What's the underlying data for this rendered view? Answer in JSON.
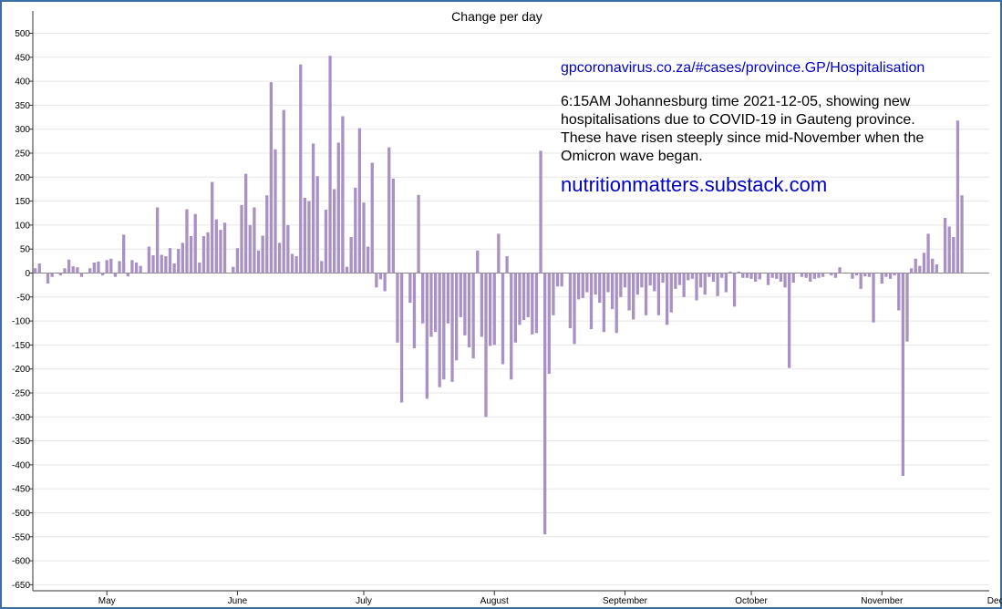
{
  "colors": {
    "bar": "#a991c4",
    "grid": "#e6e6e6",
    "axis": "#333333",
    "link": "#0000cc"
  },
  "annotation": {
    "url": "gpcoronavirus.co.za/#cases/province.GP/Hospitalisation",
    "description": "6:15AM Johannesburg time 2021-12-05, showing new hospitalisations due to COVID-19 in Gauteng province. These have risen steeply since mid-November when the Omicron wave began.",
    "substack": "nutritionmatters.substack.com"
  },
  "chart_data": {
    "type": "bar",
    "title": "Change per day",
    "xlabel": "",
    "ylabel": "",
    "ylim": [
      -660,
      520
    ],
    "grid": true,
    "yticks": [
      500,
      450,
      400,
      350,
      300,
      250,
      200,
      150,
      100,
      50,
      0,
      -50,
      -100,
      -150,
      -200,
      -250,
      -300,
      -350,
      -400,
      -450,
      -500,
      -550,
      -600,
      -650
    ],
    "xticks": [
      {
        "label": "May",
        "day": 17
      },
      {
        "label": "June",
        "day": 48
      },
      {
        "label": "July",
        "day": 78
      },
      {
        "label": "August",
        "day": 109
      },
      {
        "label": "September",
        "day": 140
      },
      {
        "label": "October",
        "day": 170
      },
      {
        "label": "November",
        "day": 201
      },
      {
        "label": "December",
        "day": 231
      }
    ],
    "start_date": "2021-04-14",
    "values": [
      10,
      20,
      0,
      -22,
      -8,
      0,
      -5,
      10,
      28,
      14,
      12,
      -8,
      0,
      10,
      22,
      24,
      -5,
      27,
      30,
      -8,
      25,
      80,
      -7,
      27,
      22,
      15,
      0,
      55,
      37,
      137,
      38,
      35,
      52,
      20,
      50,
      63,
      133,
      77,
      123,
      22,
      77,
      85,
      190,
      112,
      90,
      105,
      0,
      13,
      52,
      142,
      207,
      100,
      137,
      47,
      78,
      162,
      398,
      258,
      63,
      340,
      100,
      40,
      35,
      435,
      157,
      150,
      270,
      202,
      25,
      132,
      453,
      175,
      272,
      327,
      13,
      75,
      178,
      302,
      147,
      55,
      230,
      -30,
      -13,
      -38,
      262,
      197,
      -145,
      -270,
      0,
      -62,
      -157,
      163,
      -105,
      -262,
      -133,
      -123,
      -238,
      -222,
      -105,
      -227,
      -182,
      -92,
      -130,
      -155,
      -178,
      47,
      -133,
      -300,
      -152,
      -150,
      82,
      -190,
      35,
      -222,
      -145,
      -108,
      -98,
      -92,
      -128,
      -125,
      255,
      -545,
      -210,
      -88,
      -28,
      -28,
      0,
      -115,
      -148,
      -55,
      -52,
      -40,
      -117,
      -45,
      -62,
      -123,
      -40,
      -75,
      -125,
      -50,
      -30,
      -78,
      -97,
      -45,
      -30,
      -88,
      -26,
      -38,
      -88,
      -20,
      -108,
      -82,
      -33,
      -25,
      -50,
      -15,
      -12,
      -57,
      -30,
      -45,
      -8,
      -18,
      -48,
      -10,
      -40,
      3,
      -70,
      3,
      -10,
      -10,
      -12,
      -18,
      -13,
      0,
      -25,
      -10,
      -12,
      -18,
      -30,
      -198,
      -20,
      0,
      -8,
      -10,
      -18,
      -12,
      -10,
      -8,
      0,
      -5,
      -10,
      12,
      0,
      0,
      -12,
      -5,
      -33,
      -7,
      -8,
      -103,
      0,
      -22,
      -8,
      -12,
      -5,
      -78,
      -423,
      -143,
      10,
      30,
      15,
      42,
      82,
      30,
      18,
      0,
      115,
      97,
      75,
      318,
      162
    ]
  }
}
